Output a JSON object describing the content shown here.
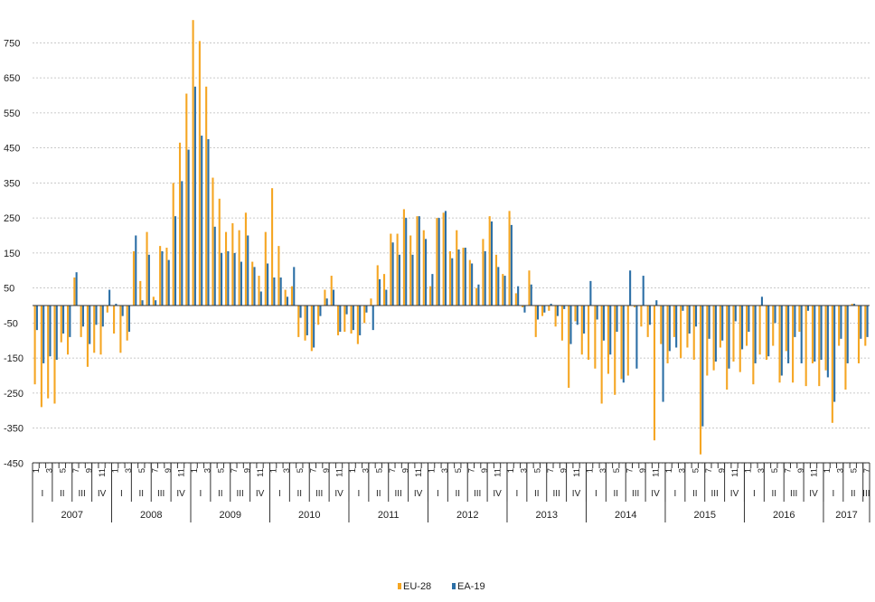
{
  "chart_data": {
    "type": "bar",
    "title": "",
    "xlabel": "",
    "ylabel": "",
    "ylim": [
      -450,
      820
    ],
    "yticks": [
      -450,
      -350,
      -250,
      -150,
      -50,
      50,
      150,
      250,
      350,
      450,
      550,
      650,
      750
    ],
    "grid": true,
    "legend_position": "bottom-center",
    "years": [
      "2007",
      "2008",
      "2009",
      "2010",
      "2011",
      "2012",
      "2013",
      "2014",
      "2015",
      "2016",
      "2017"
    ],
    "quarters": [
      "I",
      "II",
      "III",
      "IV"
    ],
    "month_labels": [
      "1",
      "3",
      "5",
      "7",
      "9",
      "11"
    ],
    "series": [
      {
        "name": "EU-28",
        "color": "#f5a623",
        "values": [
          -225,
          -290,
          -265,
          -280,
          -105,
          -140,
          80,
          -90,
          -175,
          -135,
          -140,
          -20,
          -80,
          -135,
          -100,
          155,
          70,
          210,
          25,
          170,
          165,
          350,
          465,
          605,
          815,
          755,
          625,
          365,
          305,
          210,
          235,
          215,
          265,
          125,
          85,
          210,
          335,
          170,
          45,
          55,
          -90,
          -100,
          -130,
          -55,
          45,
          85,
          -85,
          -75,
          -80,
          -110,
          -50,
          20,
          115,
          90,
          205,
          205,
          275,
          200,
          255,
          215,
          55,
          250,
          265,
          155,
          215,
          165,
          130,
          50,
          190,
          255,
          145,
          90,
          270,
          35,
          -5,
          100,
          -90,
          -30,
          -15,
          -60,
          -100,
          -235,
          -45,
          -140,
          -155,
          -180,
          -280,
          -195,
          -255,
          -210,
          -200,
          -5,
          -60,
          -90,
          -385,
          -110,
          -165,
          -90,
          -150,
          -120,
          -155,
          -425,
          -200,
          -185,
          -120,
          -240,
          -160,
          -190,
          -115,
          -225,
          -140,
          -155,
          -115,
          -220,
          -130,
          -220,
          -75,
          -230,
          -165,
          -230,
          -185,
          -335,
          -115,
          -240,
          5,
          -165,
          -115
        ]
      },
      {
        "name": "EA-19",
        "color": "#2c6fa6",
        "values": [
          -70,
          -165,
          -145,
          -155,
          -80,
          -90,
          95,
          -60,
          -110,
          -55,
          -60,
          45,
          5,
          -30,
          -75,
          200,
          15,
          145,
          15,
          155,
          130,
          255,
          355,
          445,
          625,
          485,
          475,
          225,
          150,
          155,
          150,
          125,
          200,
          110,
          40,
          120,
          80,
          80,
          25,
          110,
          -35,
          -85,
          -120,
          -30,
          20,
          45,
          -75,
          -25,
          -70,
          -85,
          -20,
          -70,
          75,
          45,
          180,
          145,
          250,
          145,
          255,
          190,
          90,
          250,
          270,
          135,
          160,
          165,
          120,
          60,
          155,
          240,
          110,
          85,
          230,
          55,
          -20,
          60,
          -40,
          -20,
          5,
          -30,
          -10,
          -110,
          -55,
          -80,
          70,
          -40,
          -100,
          -140,
          -75,
          -220,
          100,
          -180,
          85,
          -55,
          15,
          -275,
          -130,
          -120,
          -15,
          -80,
          -60,
          -345,
          -95,
          -160,
          -100,
          -180,
          -45,
          -125,
          -75,
          -165,
          25,
          -145,
          -50,
          -200,
          -165,
          -90,
          -165,
          -15,
          -160,
          -155,
          -205,
          -275,
          -95,
          -165,
          5,
          -95,
          -90
        ]
      }
    ]
  }
}
